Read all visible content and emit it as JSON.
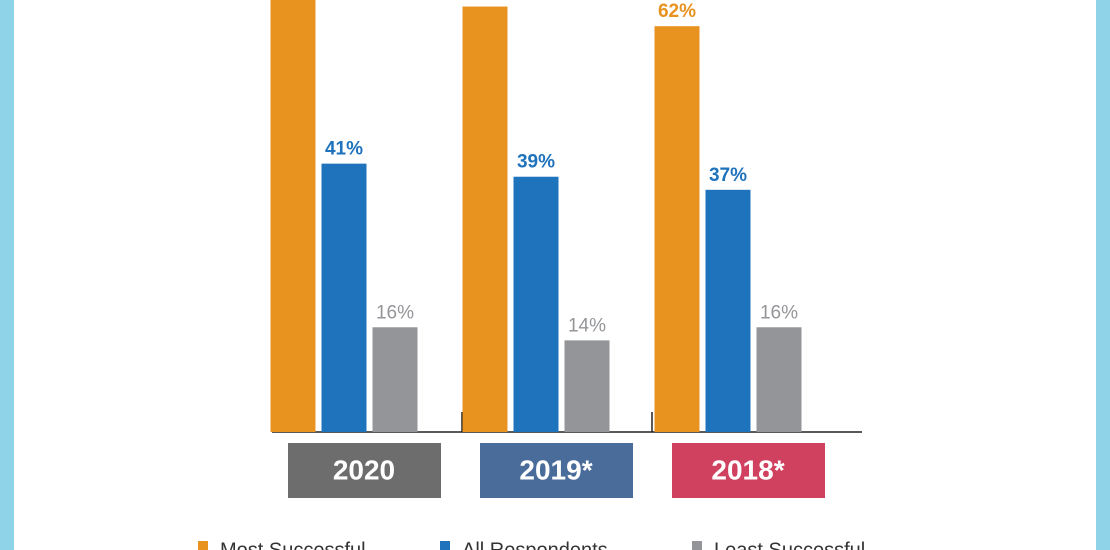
{
  "chart_data": {
    "type": "bar",
    "categories": [
      "2020",
      "2019*",
      "2018*"
    ],
    "category_colors": [
      "#6d6d6d",
      "#4a6c9b",
      "#d0415f"
    ],
    "series": [
      {
        "name": "Most Successful",
        "color": "#e8921f",
        "values": [
          68,
          65,
          62
        ],
        "value_labels": [
          null,
          null,
          "62%"
        ]
      },
      {
        "name": "All Respondents",
        "color": "#1f72bc",
        "values": [
          41,
          39,
          37
        ],
        "value_labels": [
          "41%",
          "39%",
          "37%"
        ]
      },
      {
        "name": "Least Successful",
        "color": "#939598",
        "values": [
          16,
          14,
          16
        ],
        "value_labels": [
          "16%",
          "14%",
          "16%"
        ]
      }
    ],
    "ylim": [
      0,
      66
    ]
  }
}
